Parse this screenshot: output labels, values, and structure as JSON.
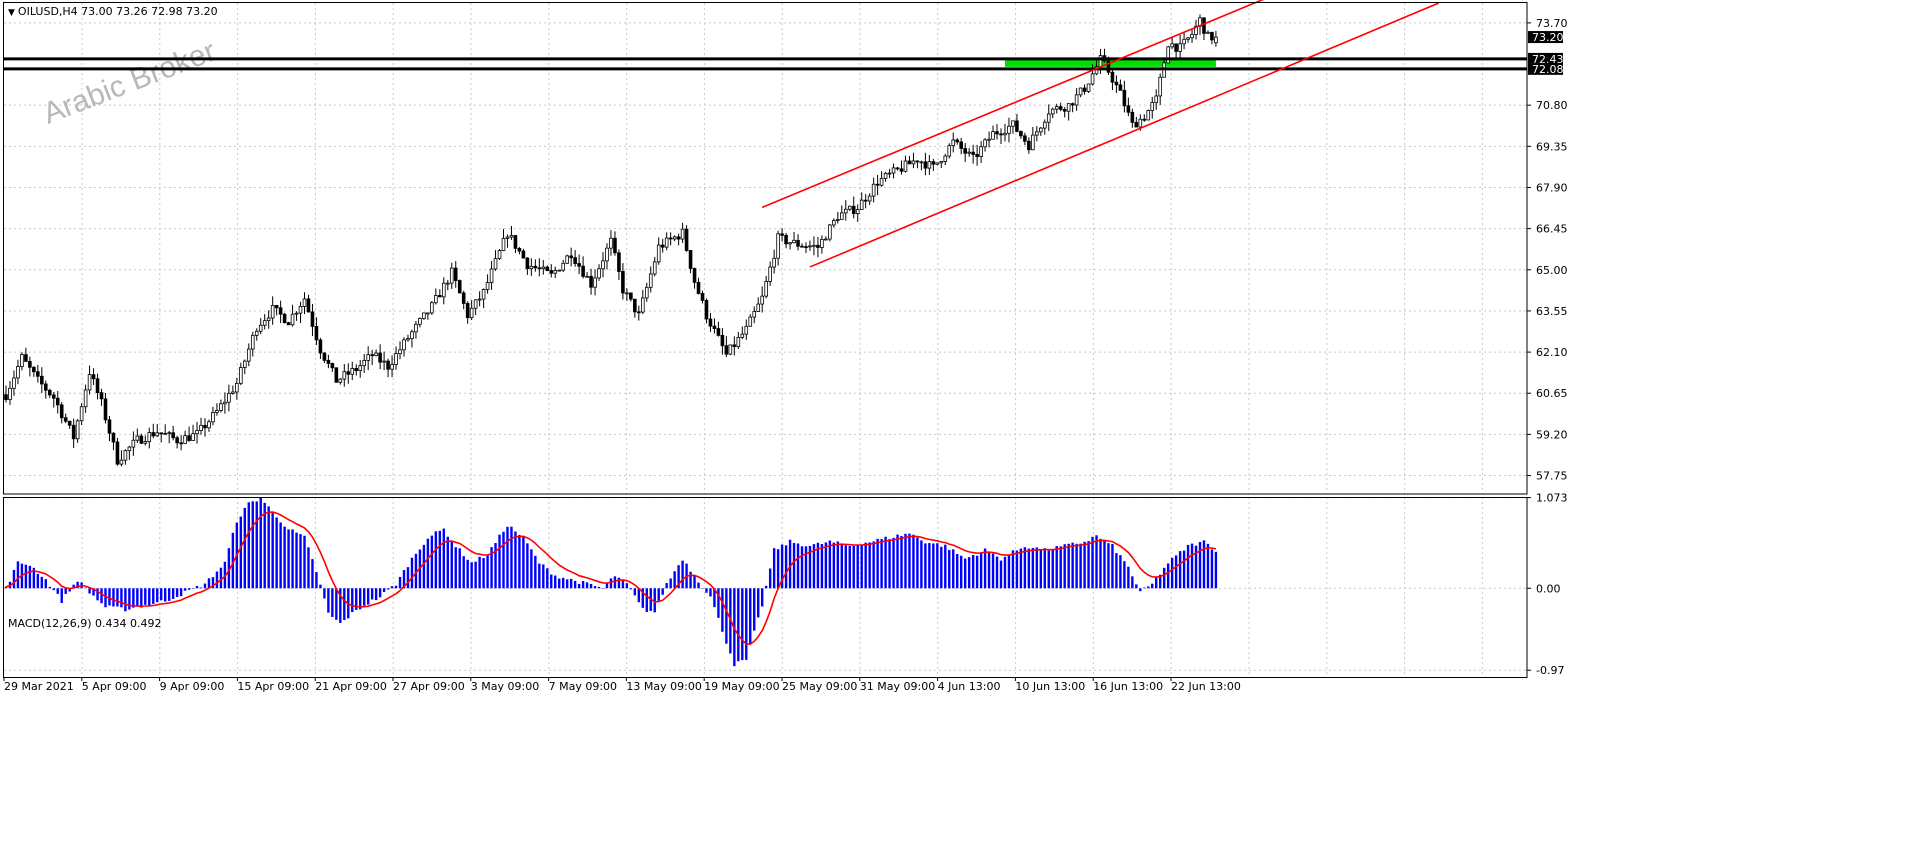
{
  "symbol_header": "OILUSD,H4  73.00 73.26 72.98 73.20",
  "macd_header": "MACD(12,26,9) 0.434 0.492",
  "watermark": "Arabic Broker",
  "colors": {
    "candle": "#000000",
    "channel": "#ff0000",
    "zone": "#00dd00",
    "histogram": "#0000ff",
    "signal": "#ff0000",
    "level": "#000000",
    "grid": "#c8c8c8"
  },
  "chart_data": [
    {
      "type": "candlestick",
      "title": "OILUSD,H4",
      "ohlc_last": {
        "open": 73.0,
        "high": 73.26,
        "low": 72.98,
        "close": 73.2
      },
      "ylim": [
        57.1,
        74.4
      ],
      "y_ticks": [
        "73.70",
        "70.80",
        "69.35",
        "67.90",
        "66.45",
        "65.00",
        "63.55",
        "62.10",
        "60.65",
        "59.20",
        "57.75"
      ],
      "x_ticks": [
        "29 Mar 2021",
        "5 Apr 09:00",
        "9 Apr 09:00",
        "15 Apr 09:00",
        "21 Apr 09:00",
        "27 Apr 09:00",
        "3 May 09:00",
        "7 May 09:00",
        "13 May 09:00",
        "19 May 09:00",
        "25 May 09:00",
        "31 May 09:00",
        "4 Jun 13:00",
        "10 Jun 13:00",
        "16 Jun 13:00",
        "22 Jun 13:00"
      ],
      "price_anchors": [
        [
          0,
          60.6
        ],
        [
          4,
          61.9
        ],
        [
          8,
          61.1
        ],
        [
          12,
          60.5
        ],
        [
          17,
          59.1
        ],
        [
          21,
          61.4
        ],
        [
          24,
          60.3
        ],
        [
          28,
          58.3
        ],
        [
          33,
          59.0
        ],
        [
          38,
          59.3
        ],
        [
          43,
          59.0
        ],
        [
          48,
          59.2
        ],
        [
          53,
          60.0
        ],
        [
          58,
          61.0
        ],
        [
          63,
          63.0
        ],
        [
          67,
          63.6
        ],
        [
          71,
          63.2
        ],
        [
          75,
          64.0
        ],
        [
          79,
          62.2
        ],
        [
          83,
          61.1
        ],
        [
          88,
          61.5
        ],
        [
          92,
          62.0
        ],
        [
          96,
          61.6
        ],
        [
          101,
          62.6
        ],
        [
          107,
          63.7
        ],
        [
          112,
          64.9
        ],
        [
          116,
          63.4
        ],
        [
          120,
          64.2
        ],
        [
          126,
          66.3
        ],
        [
          131,
          65.2
        ],
        [
          137,
          64.8
        ],
        [
          142,
          65.6
        ],
        [
          147,
          64.5
        ],
        [
          152,
          66.0
        ],
        [
          155,
          64.3
        ],
        [
          159,
          63.4
        ],
        [
          164,
          65.8
        ],
        [
          170,
          66.3
        ],
        [
          173,
          64.6
        ],
        [
          176,
          63.4
        ],
        [
          181,
          62.0
        ],
        [
          186,
          62.9
        ],
        [
          190,
          64.0
        ],
        [
          194,
          66.1
        ],
        [
          199,
          65.9
        ],
        [
          204,
          65.8
        ],
        [
          209,
          66.9
        ],
        [
          214,
          67.2
        ],
        [
          219,
          68.1
        ],
        [
          224,
          68.5
        ],
        [
          229,
          68.9
        ],
        [
          233,
          68.6
        ],
        [
          238,
          69.5
        ],
        [
          243,
          68.9
        ],
        [
          248,
          69.8
        ],
        [
          253,
          70.1
        ],
        [
          257,
          69.4
        ],
        [
          262,
          70.6
        ],
        [
          267,
          70.8
        ],
        [
          271,
          71.4
        ],
        [
          275,
          72.4
        ],
        [
          277,
          72.0
        ],
        [
          280,
          71.2
        ],
        [
          283,
          70.1
        ],
        [
          286,
          70.4
        ],
        [
          289,
          71.0
        ],
        [
          292,
          73.0
        ],
        [
          295,
          72.8
        ],
        [
          298,
          73.3
        ],
        [
          300,
          73.8
        ],
        [
          302,
          73.2
        ],
        [
          304,
          73.2
        ]
      ],
      "horizontal_levels": [
        {
          "label": "72.43",
          "value": 72.43
        },
        {
          "label": "72.08",
          "value": 72.08
        }
      ],
      "current_price_label": "73.20",
      "support_zone": {
        "from_bar": 251,
        "to_bar": 304,
        "low": 72.15,
        "high": 72.43
      },
      "channel_lines": [
        {
          "bar1": 190,
          "price1": 67.2,
          "bar2": 318,
          "price2": 74.65
        },
        {
          "bar1": 202,
          "price1": 65.1,
          "bar2": 360,
          "price2": 74.4
        }
      ]
    },
    {
      "type": "bar",
      "title": "MACD(12,26,9)",
      "main": 0.434,
      "signal": 0.492,
      "ylim": [
        -1.05,
        1.08
      ],
      "y_ticks": [
        "1.073",
        "0.00",
        "-0.97"
      ],
      "histogram_anchors": [
        [
          0,
          0.0
        ],
        [
          3,
          0.3
        ],
        [
          6,
          0.28
        ],
        [
          10,
          0.1
        ],
        [
          14,
          -0.15
        ],
        [
          18,
          0.1
        ],
        [
          21,
          -0.05
        ],
        [
          25,
          -0.22
        ],
        [
          30,
          -0.25
        ],
        [
          35,
          -0.2
        ],
        [
          40,
          -0.15
        ],
        [
          45,
          -0.05
        ],
        [
          50,
          0.05
        ],
        [
          55,
          0.3
        ],
        [
          58,
          0.8
        ],
        [
          61,
          1.0
        ],
        [
          64,
          1.07
        ],
        [
          67,
          0.9
        ],
        [
          71,
          0.7
        ],
        [
          75,
          0.6
        ],
        [
          78,
          0.2
        ],
        [
          81,
          -0.3
        ],
        [
          84,
          -0.42
        ],
        [
          87,
          -0.3
        ],
        [
          90,
          -0.2
        ],
        [
          94,
          -0.1
        ],
        [
          98,
          0.05
        ],
        [
          102,
          0.35
        ],
        [
          106,
          0.6
        ],
        [
          110,
          0.7
        ],
        [
          113,
          0.5
        ],
        [
          117,
          0.3
        ],
        [
          121,
          0.4
        ],
        [
          126,
          0.75
        ],
        [
          130,
          0.6
        ],
        [
          134,
          0.3
        ],
        [
          138,
          0.15
        ],
        [
          142,
          0.1
        ],
        [
          146,
          0.05
        ],
        [
          150,
          0.0
        ],
        [
          153,
          0.15
        ],
        [
          156,
          0.05
        ],
        [
          160,
          -0.25
        ],
        [
          163,
          -0.28
        ],
        [
          166,
          0.05
        ],
        [
          170,
          0.35
        ],
        [
          173,
          0.15
        ],
        [
          177,
          -0.1
        ],
        [
          180,
          -0.5
        ],
        [
          183,
          -0.9
        ],
        [
          186,
          -0.85
        ],
        [
          190,
          -0.2
        ],
        [
          193,
          0.45
        ],
        [
          197,
          0.55
        ],
        [
          202,
          0.5
        ],
        [
          207,
          0.55
        ],
        [
          212,
          0.5
        ],
        [
          217,
          0.55
        ],
        [
          222,
          0.6
        ],
        [
          227,
          0.65
        ],
        [
          231,
          0.55
        ],
        [
          236,
          0.5
        ],
        [
          241,
          0.35
        ],
        [
          246,
          0.45
        ],
        [
          250,
          0.35
        ],
        [
          256,
          0.5
        ],
        [
          261,
          0.45
        ],
        [
          266,
          0.5
        ],
        [
          271,
          0.55
        ],
        [
          274,
          0.62
        ],
        [
          278,
          0.5
        ],
        [
          282,
          0.25
        ],
        [
          285,
          -0.05
        ],
        [
          288,
          0.05
        ],
        [
          292,
          0.3
        ],
        [
          297,
          0.5
        ],
        [
          301,
          0.55
        ],
        [
          304,
          0.45
        ]
      ]
    }
  ]
}
